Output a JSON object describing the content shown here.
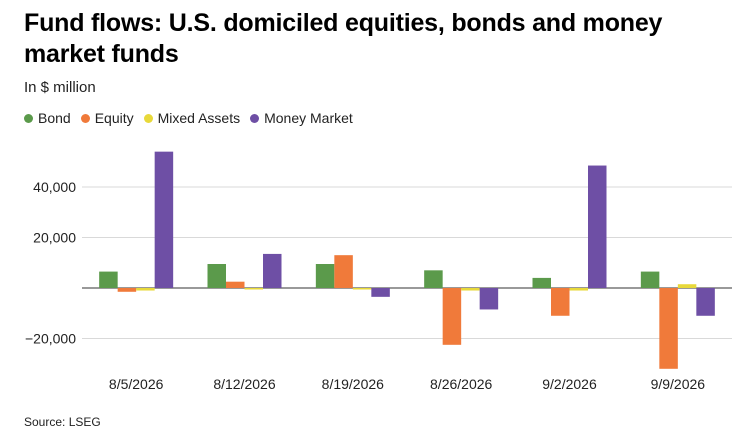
{
  "header": {
    "title": "Fund flows: U.S. domiciled equities, bonds and money market funds",
    "subtitle": "In $ million"
  },
  "footer": {
    "source": "Source: LSEG"
  },
  "chart_data": {
    "type": "bar",
    "categories": [
      "8/5/2026",
      "8/12/2026",
      "8/19/2026",
      "8/26/2026",
      "9/2/2026",
      "9/9/2026"
    ],
    "series": [
      {
        "name": "Bond",
        "color": "#5b9a4b",
        "values": [
          6500,
          9500,
          9500,
          7000,
          4000,
          6500
        ]
      },
      {
        "name": "Equity",
        "color": "#f07a3a",
        "values": [
          -1500,
          2500,
          13000,
          -22500,
          -11000,
          -32000
        ]
      },
      {
        "name": "Mixed Assets",
        "color": "#e8d93a",
        "values": [
          -1000,
          -500,
          0,
          -1000,
          -1000,
          1500
        ]
      },
      {
        "name": "Money Market",
        "color": "#6e4fa5",
        "values": [
          54000,
          13500,
          -3500,
          -8500,
          48500,
          -11000
        ]
      }
    ],
    "yticks": [
      -20000,
      0,
      20000,
      40000
    ],
    "ytick_labels": [
      "−20,000",
      "",
      "20,000",
      "40,000"
    ],
    "ylim": [
      -33000,
      58000
    ],
    "grid": true,
    "legend_position": "top-left"
  }
}
